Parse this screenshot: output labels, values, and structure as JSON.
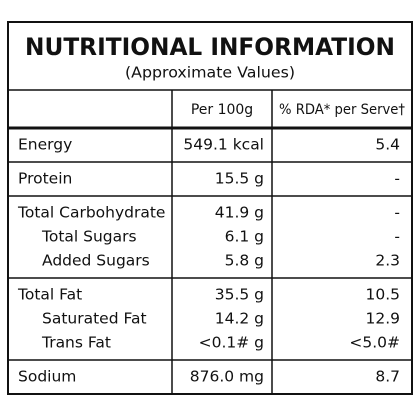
{
  "table": {
    "title": "NUTRITIONAL INFORMATION",
    "subtitle": "(Approximate Values)",
    "header": [
      "Per 100g",
      "% RDA* per Serve†"
    ],
    "groups": [
      [
        [
          "Energy",
          "549.1 kcal",
          "5.4"
        ]
      ],
      [
        [
          "Protein",
          "15.5 g",
          "-"
        ]
      ],
      [
        [
          "Total Carbohydrate",
          "41.9 g",
          "-"
        ],
        [
          "Total Sugars",
          "6.1 g",
          "-"
        ],
        [
          "Added Sugars",
          "5.8 g",
          "2.3"
        ]
      ],
      [
        [
          "Total Fat",
          "35.5 g",
          "10.5"
        ],
        [
          "Saturated Fat",
          "14.2 g",
          "12.9"
        ],
        [
          "Trans Fat",
          "<0.1# g",
          "<5.0#"
        ]
      ],
      [
        [
          "Sodium",
          "876.0 mg",
          "8.7"
        ]
      ]
    ]
  }
}
